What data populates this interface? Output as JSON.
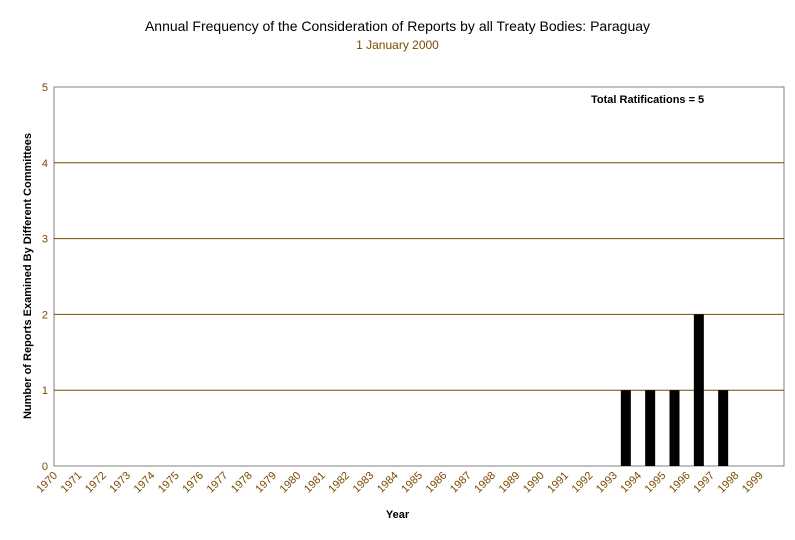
{
  "colors": {
    "axis_text": "#7a4a00",
    "subtitle": "#7a4a00",
    "gridline": "#7a4a00",
    "bar": "#000000",
    "plot_border": "#808080"
  },
  "chart_data": {
    "type": "bar",
    "title": "Annual Frequency of the Consideration of Reports by all Treaty Bodies: Paraguay",
    "subtitle": "1 January 2000",
    "xlabel": "Year",
    "ylabel": "Number of Reports Examined By Different Committees",
    "annotation": "Total Ratifications = 5",
    "categories": [
      "1970",
      "1971",
      "1972",
      "1973",
      "1974",
      "1975",
      "1976",
      "1977",
      "1978",
      "1979",
      "1980",
      "1981",
      "1982",
      "1983",
      "1984",
      "1985",
      "1986",
      "1987",
      "1988",
      "1989",
      "1990",
      "1991",
      "1992",
      "1993",
      "1994",
      "1995",
      "1996",
      "1997",
      "1998",
      "1999"
    ],
    "values": [
      0,
      0,
      0,
      0,
      0,
      0,
      0,
      0,
      0,
      0,
      0,
      0,
      0,
      0,
      0,
      0,
      0,
      0,
      0,
      0,
      0,
      0,
      0,
      1,
      1,
      1,
      2,
      1,
      0,
      0
    ],
    "yticks": [
      "0",
      "1",
      "2",
      "3",
      "4",
      "5"
    ],
    "ylim": [
      0,
      5
    ],
    "grid": true,
    "legend": "none"
  }
}
